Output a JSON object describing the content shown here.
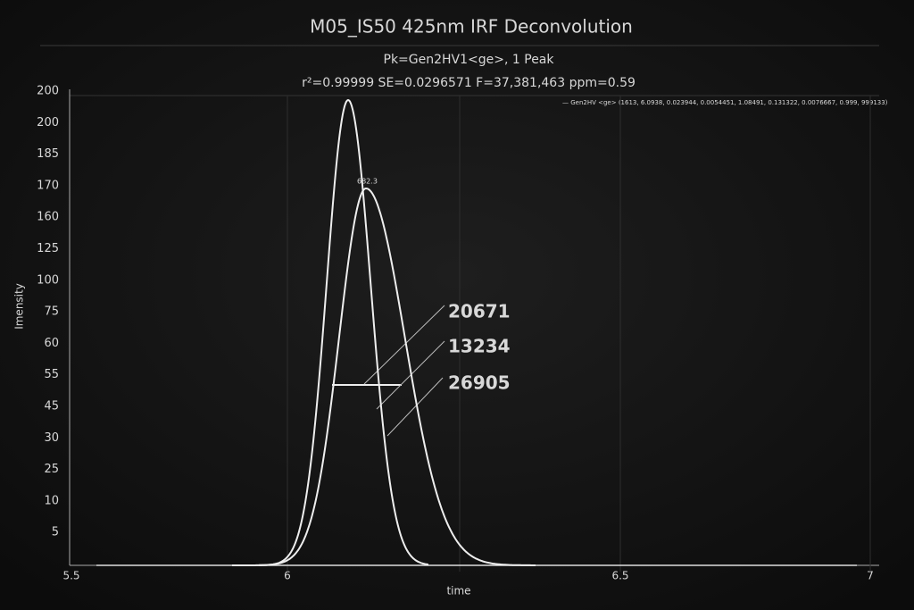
{
  "header": {
    "title": "M05_IS50 425nm IRF Deconvolution",
    "subtitle": "Pk=Gen2HV1<ge>, 1 Peak",
    "stats": "r²=0.99999  SE=0.0296571  F=37,381,463  ppm=0.59"
  },
  "legend": "— Gen2HV <ge> (1613, 6.0938, 0.023944, 0.0054451, 1.08491, 0.131322, 0.0076667, 0.999, 999133)",
  "axes": {
    "y_label": "Imensity",
    "x_label": "time",
    "y_tick_labels": [
      "200",
      "200",
      "185",
      "170",
      "160",
      "125",
      "100",
      "75",
      "60",
      "55",
      "45",
      "30",
      "25",
      "10",
      "5"
    ],
    "x_tick_labels": [
      "5.5",
      "6",
      "6.5",
      "7"
    ]
  },
  "annotations": {
    "peak": "682.3",
    "values": [
      "20671",
      "13234",
      "26905"
    ]
  }
}
